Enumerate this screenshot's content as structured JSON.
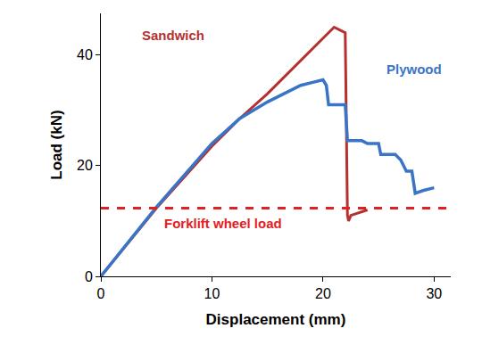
{
  "chart_data": {
    "type": "line",
    "x_label": "Displacement (mm)",
    "y_label": "Load (kN)",
    "xlim": [
      0,
      31.5
    ],
    "xticks": [
      0,
      10,
      20,
      30
    ],
    "ylim": [
      0,
      47.5
    ],
    "yticks": [
      0,
      20,
      40
    ],
    "grid": false,
    "series": [
      {
        "name": "Sandwich",
        "color": "#b5302f",
        "line_style": "solid",
        "x": [
          0,
          5,
          10,
          12.5,
          15,
          17,
          19,
          20,
          21,
          21.5,
          22,
          22.2,
          22.3,
          22.5,
          24
        ],
        "values": [
          0,
          12.3,
          23.5,
          28.5,
          33,
          37,
          41,
          43,
          45,
          44.5,
          44,
          11,
          10,
          11,
          12
        ]
      },
      {
        "name": "Plywood",
        "color": "#3a74c6",
        "line_style": "solid",
        "x": [
          0,
          5,
          10,
          12.5,
          15,
          18,
          19,
          20,
          20.3,
          20.5,
          22,
          22.2,
          23.5,
          24,
          25,
          25.2,
          26.5,
          27,
          27.5,
          28,
          28.3,
          29,
          30
        ],
        "values": [
          0,
          12.5,
          24,
          28.5,
          31.5,
          34.5,
          35,
          35.5,
          34.5,
          31,
          31,
          24.5,
          24.5,
          24,
          24,
          22,
          22,
          21,
          19,
          19,
          15,
          15.5,
          16
        ]
      },
      {
        "name": "Forklift wheel load",
        "color": "#e3201f",
        "line_style": "dashed",
        "x": [
          0,
          31.5
        ],
        "values": [
          12.3,
          12.3
        ]
      }
    ]
  }
}
